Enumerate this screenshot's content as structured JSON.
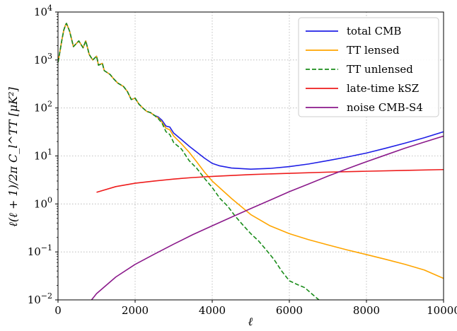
{
  "chart_data": {
    "type": "line",
    "title": "",
    "xlabel": "ℓ",
    "ylabel": "ℓ(ℓ + 1)/2π C_l^TT  [μK²]",
    "xlim": [
      0,
      10000
    ],
    "ylim": [
      0.01,
      10000
    ],
    "yscale": "log",
    "grid": true,
    "legend_position": "top-right",
    "x_ticks": [
      "0",
      "2000",
      "4000",
      "6000",
      "8000",
      "10000"
    ],
    "y_ticks": [
      {
        "base": "10",
        "exp": "4"
      },
      {
        "base": "10",
        "exp": "3"
      },
      {
        "base": "10",
        "exp": "2"
      },
      {
        "base": "10",
        "exp": "1"
      },
      {
        "base": "10",
        "exp": "0"
      },
      {
        "base": "10",
        "exp": "−1"
      },
      {
        "base": "10",
        "exp": "−2"
      }
    ],
    "series": [
      {
        "name": "total CMB",
        "color": "#1f1fe6",
        "dash": "solid",
        "x": [
          2,
          50,
          100,
          150,
          200,
          220,
          300,
          400,
          540,
          650,
          720,
          810,
          900,
          1000,
          1050,
          1150,
          1200,
          1350,
          1450,
          1550,
          1700,
          1800,
          1900,
          2000,
          2100,
          2200,
          2300,
          2400,
          2500,
          2600,
          2700,
          2800,
          2900,
          3000,
          3200,
          3400,
          3600,
          3800,
          4000,
          4200,
          4500,
          5000,
          5500,
          6000,
          6500,
          7000,
          7500,
          8000,
          8500,
          9000,
          9500,
          10000
        ],
        "y": [
          900,
          1500,
          2600,
          4200,
          5500,
          5800,
          4000,
          1900,
          2500,
          1800,
          2500,
          1300,
          1000,
          1200,
          780,
          850,
          600,
          500,
          400,
          330,
          280,
          220,
          150,
          160,
          120,
          100,
          85,
          80,
          70,
          65,
          55,
          42,
          40,
          30,
          22,
          16,
          12,
          9,
          7,
          6.2,
          5.6,
          5.3,
          5.5,
          6.0,
          6.8,
          8.0,
          9.5,
          11.5,
          14.5,
          18.5,
          24,
          32
        ]
      },
      {
        "name": "TT lensed",
        "color": "#ffa500",
        "dash": "solid",
        "x": [
          2,
          50,
          100,
          150,
          200,
          220,
          300,
          400,
          540,
          650,
          720,
          810,
          900,
          1000,
          1050,
          1150,
          1200,
          1350,
          1450,
          1550,
          1700,
          1800,
          1900,
          2000,
          2100,
          2200,
          2300,
          2400,
          2500,
          2600,
          2700,
          2800,
          2900,
          3000,
          3200,
          3400,
          3600,
          3800,
          4000,
          4500,
          5000,
          5500,
          6000,
          6500,
          7000,
          7500,
          8000,
          8500,
          9000,
          9500,
          10000
        ],
        "y": [
          900,
          1500,
          2600,
          4200,
          5500,
          5800,
          4000,
          1900,
          2500,
          1800,
          2500,
          1300,
          1000,
          1200,
          780,
          850,
          600,
          500,
          400,
          330,
          280,
          220,
          150,
          160,
          120,
          100,
          85,
          80,
          70,
          62,
          50,
          38,
          35,
          26,
          18,
          12,
          7.5,
          4.6,
          3.0,
          1.3,
          0.6,
          0.35,
          0.24,
          0.18,
          0.14,
          0.11,
          0.088,
          0.07,
          0.055,
          0.042,
          0.028
        ]
      },
      {
        "name": "TT unlensed",
        "color": "#1a8c1a",
        "dash": "dashed",
        "x": [
          2,
          50,
          100,
          150,
          200,
          220,
          300,
          400,
          540,
          650,
          720,
          810,
          900,
          1000,
          1050,
          1150,
          1200,
          1350,
          1450,
          1550,
          1700,
          1800,
          1900,
          2000,
          2100,
          2200,
          2300,
          2400,
          2500,
          2600,
          2700,
          2800,
          2900,
          3000,
          3200,
          3400,
          3600,
          3800,
          4000,
          4200,
          4400,
          4600,
          4800,
          5000,
          5200,
          5400,
          5600,
          5800,
          6000,
          6200,
          6400,
          6600,
          6800
        ],
        "y": [
          900,
          1500,
          2600,
          4200,
          5500,
          5800,
          4000,
          1900,
          2500,
          1800,
          2500,
          1300,
          1000,
          1200,
          780,
          850,
          600,
          500,
          400,
          330,
          280,
          220,
          150,
          160,
          120,
          100,
          85,
          80,
          70,
          60,
          48,
          32,
          28,
          19,
          14,
          8,
          5.5,
          3.4,
          2.2,
          1.3,
          0.9,
          0.55,
          0.36,
          0.24,
          0.17,
          0.11,
          0.07,
          0.04,
          0.025,
          0.021,
          0.018,
          0.013,
          0.0095
        ]
      },
      {
        "name": "late-time kSZ",
        "color": "#ee1c1c",
        "dash": "solid",
        "x": [
          1000,
          1500,
          2000,
          2500,
          3000,
          3500,
          4000,
          5000,
          6000,
          7000,
          8000,
          9000,
          10000
        ],
        "y": [
          1.75,
          2.3,
          2.7,
          3.0,
          3.3,
          3.55,
          3.75,
          4.1,
          4.35,
          4.6,
          4.8,
          5.0,
          5.2
        ]
      },
      {
        "name": "noise CMB-S4",
        "color": "#8b1a8b",
        "dash": "solid",
        "x": [
          870,
          1000,
          1500,
          2000,
          2500,
          3000,
          3500,
          4000,
          4500,
          5000,
          5500,
          6000,
          6500,
          7000,
          7500,
          8000,
          8500,
          9000,
          9500,
          10000
        ],
        "y": [
          0.01,
          0.0135,
          0.03,
          0.055,
          0.09,
          0.145,
          0.23,
          0.35,
          0.53,
          0.8,
          1.2,
          1.8,
          2.6,
          3.8,
          5.4,
          7.6,
          10.5,
          14.5,
          19.5,
          26
        ]
      }
    ]
  }
}
